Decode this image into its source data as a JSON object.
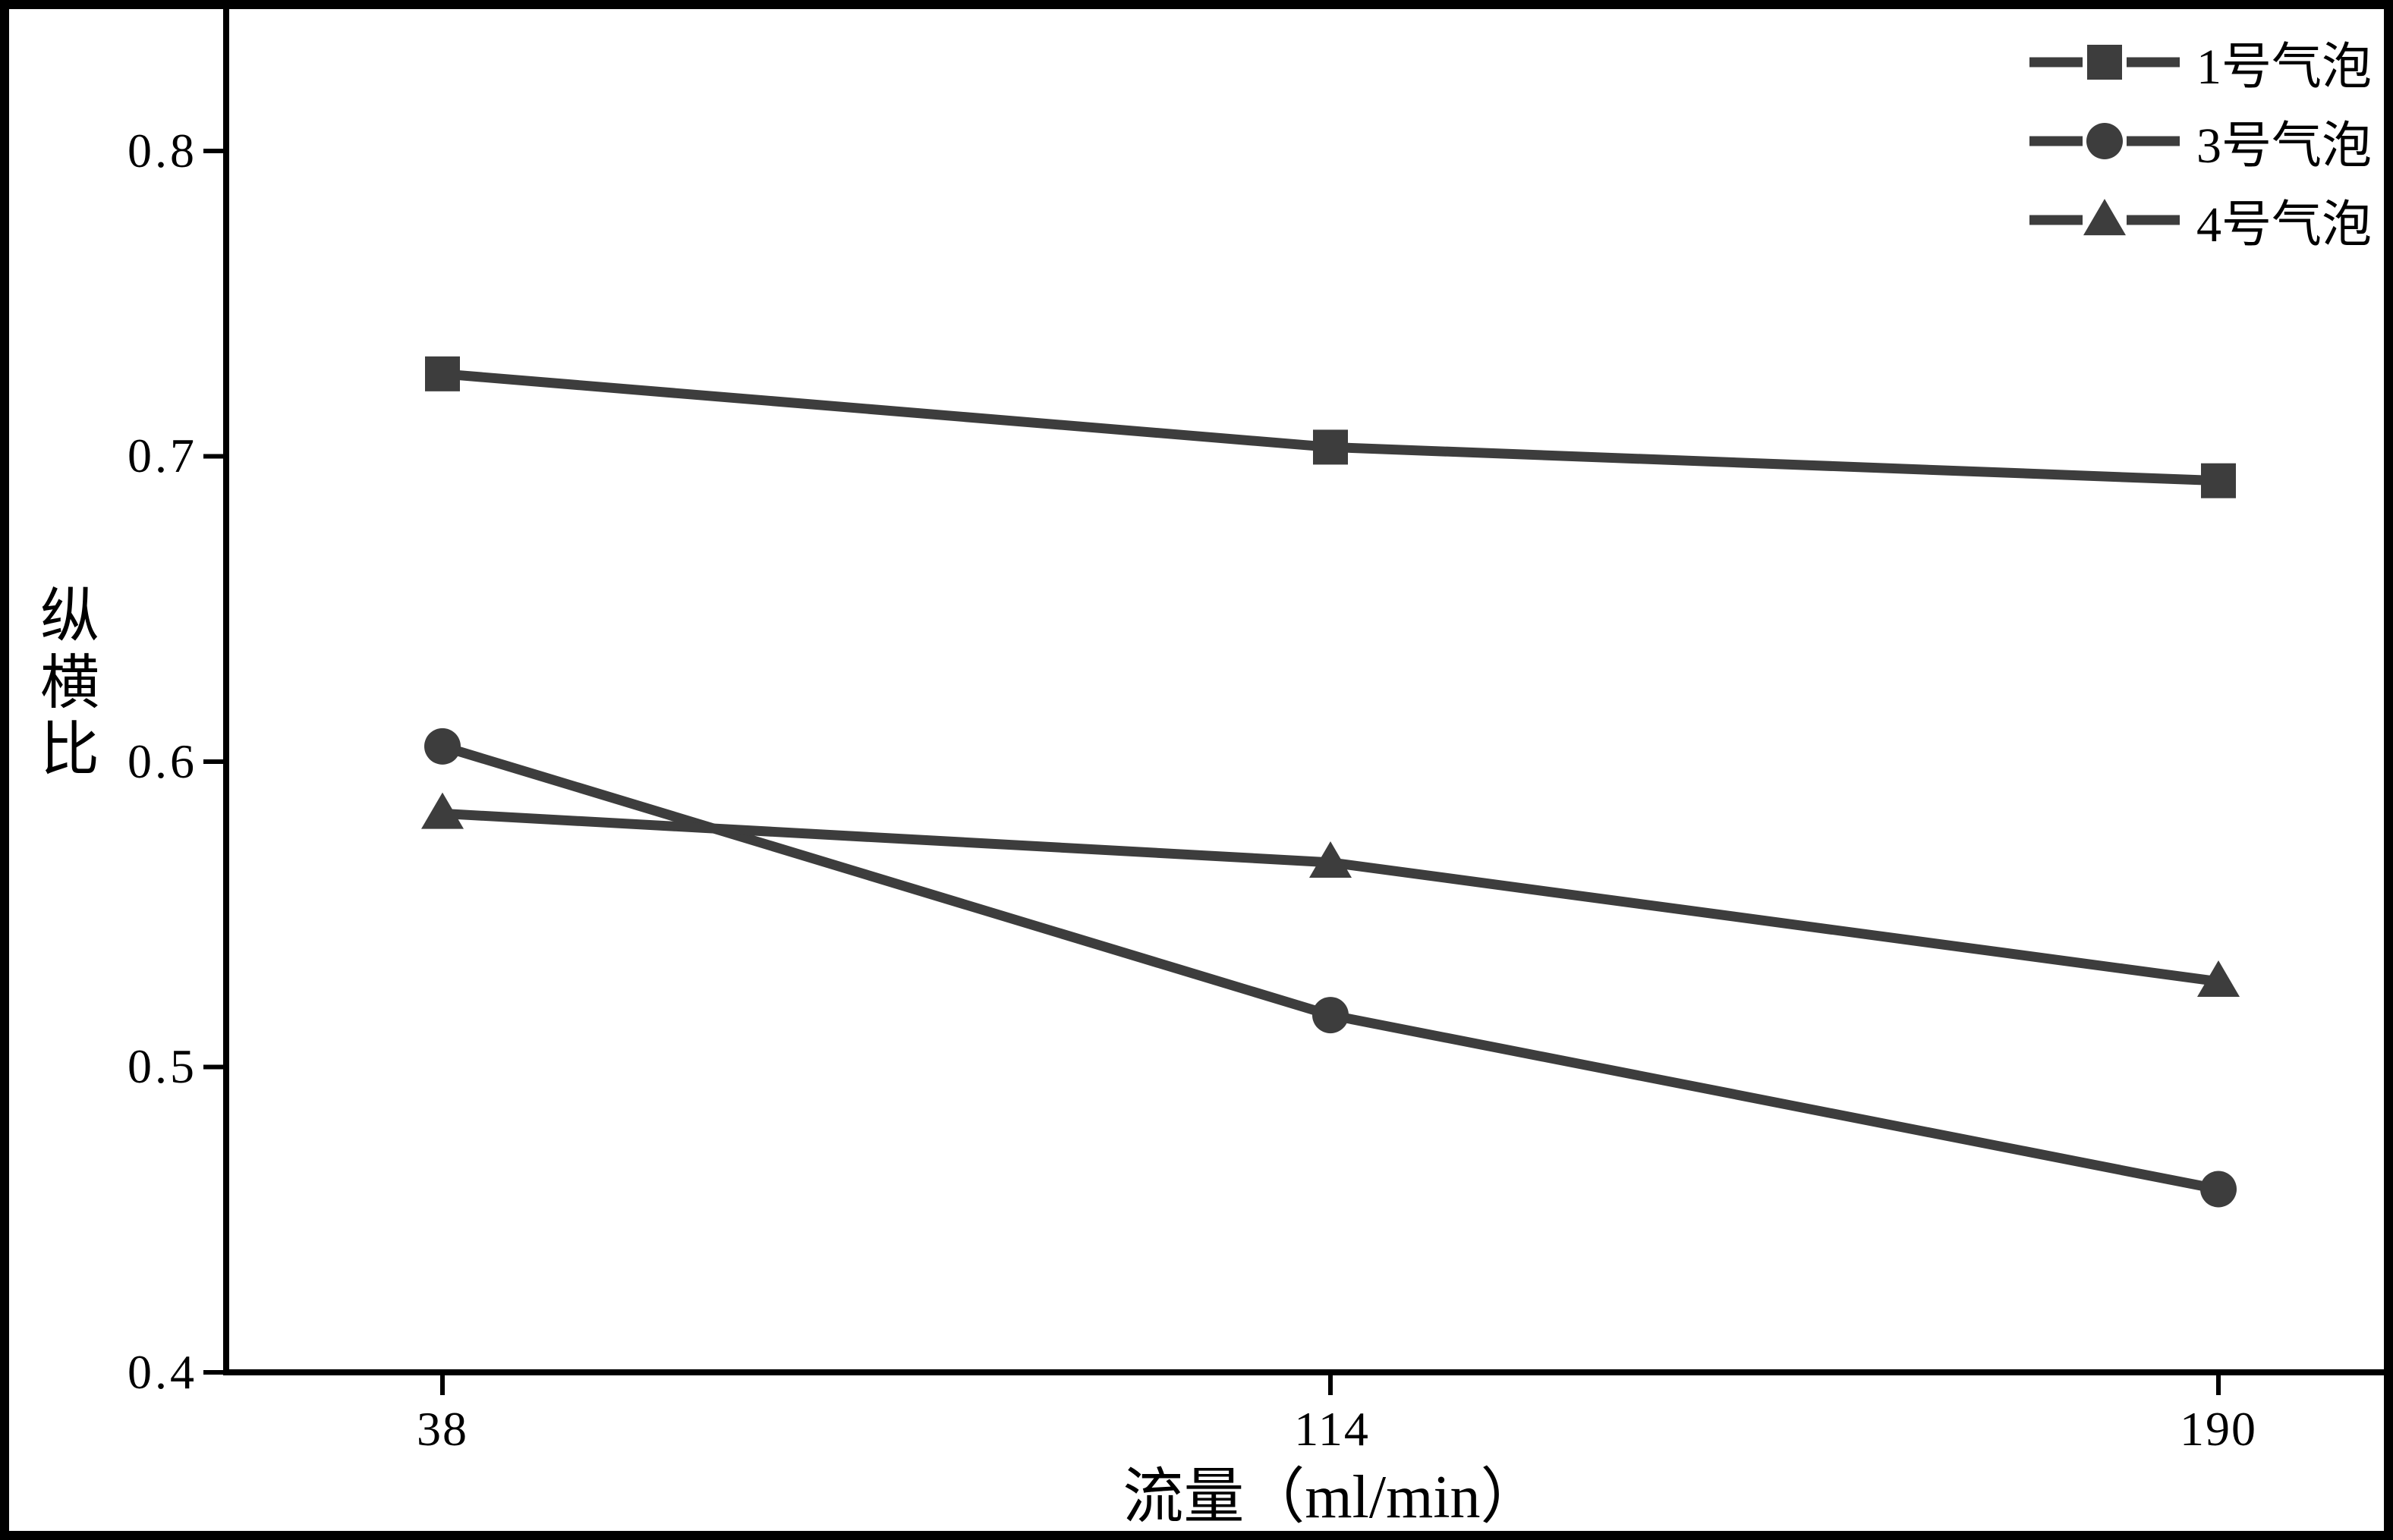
{
  "chart_data": {
    "type": "line",
    "title": "",
    "xlabel": "流量（ml/min）",
    "ylabel": "纵横比",
    "x": [
      38,
      114,
      190
    ],
    "x_tick_labels": [
      "38",
      "114",
      "190"
    ],
    "y_ticks": [
      0.4,
      0.5,
      0.6,
      0.7,
      0.8
    ],
    "y_tick_labels": [
      "0.4",
      "0.5",
      "0.6",
      "0.7",
      "0.8"
    ],
    "ylim": [
      0.4,
      0.8
    ],
    "grid": false,
    "legend_position": "top-right",
    "line_color": "#3d3d3d",
    "series": [
      {
        "name": "1号气泡",
        "marker": "square",
        "values": [
          0.727,
          0.703,
          0.692
        ]
      },
      {
        "name": "3号气泡",
        "marker": "circle",
        "values": [
          0.605,
          0.517,
          0.46
        ]
      },
      {
        "name": "4号气泡",
        "marker": "triangle",
        "values": [
          0.583,
          0.567,
          0.528
        ]
      }
    ]
  }
}
